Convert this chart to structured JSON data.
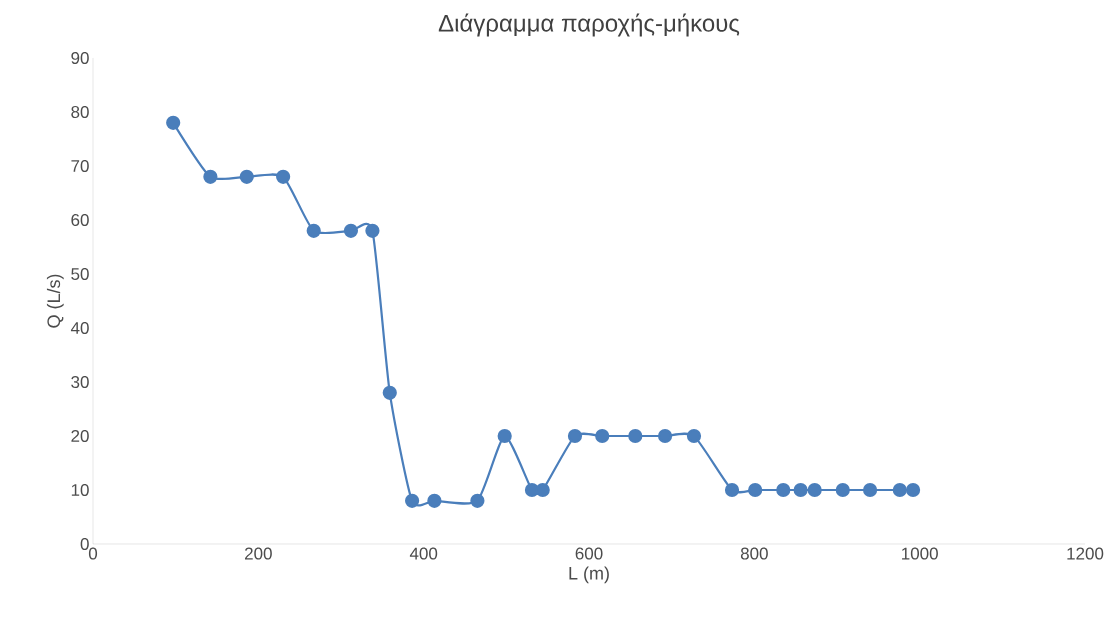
{
  "chart_data": {
    "type": "line",
    "title": "Διάγραμμα παροχής-μήκους",
    "xlabel": "L (m)",
    "ylabel": "Q (L/s)",
    "xlim": [
      0,
      1200
    ],
    "xticks": [
      0,
      200,
      400,
      600,
      800,
      1000,
      1200
    ],
    "ylim": [
      0,
      90
    ],
    "yticks": [
      0,
      10,
      20,
      30,
      40,
      50,
      60,
      70,
      80,
      90
    ],
    "grid": false,
    "marker": "circle",
    "line_style": "solid",
    "series": [
      {
        "color": "#4a7ebb",
        "x": [
          97,
          142,
          186,
          230,
          267,
          312,
          338,
          359,
          386,
          413,
          465,
          498,
          531,
          544,
          583,
          616,
          656,
          692,
          727,
          773,
          801,
          835,
          856,
          873,
          907,
          940,
          976,
          992
        ],
        "values": [
          78,
          68,
          68,
          68,
          58,
          58,
          58,
          28,
          8,
          8,
          8,
          20,
          10,
          10,
          20,
          20,
          20,
          20,
          20,
          10,
          10,
          10,
          10,
          10,
          10,
          10,
          10,
          10
        ]
      }
    ]
  }
}
